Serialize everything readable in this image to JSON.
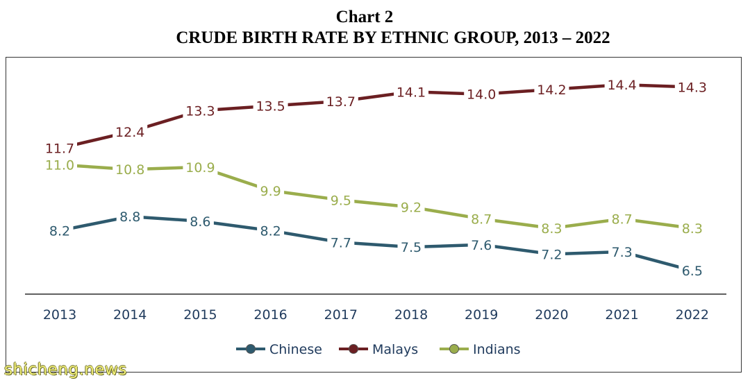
{
  "header": {
    "title": "Chart 2",
    "subtitle": "CRUDE BIRTH RATE BY ETHNIC GROUP, 2013 – 2022"
  },
  "watermark": "shicheng.news",
  "colors": {
    "Chinese": "#2e5a6e",
    "Malays": "#6b1f22",
    "Indians": "#9aad4c",
    "axis": "#000000",
    "tick_label": "#1f3a5c"
  },
  "chart_data": {
    "type": "line",
    "title": "CRUDE BIRTH RATE BY ETHNIC GROUP, 2013 – 2022",
    "xlabel": "",
    "ylabel": "",
    "categories": [
      "2013",
      "2014",
      "2015",
      "2016",
      "2017",
      "2018",
      "2019",
      "2020",
      "2021",
      "2022"
    ],
    "ylim": [
      5.5,
      15.2
    ],
    "grid": false,
    "legend_position": "bottom",
    "series": [
      {
        "name": "Chinese",
        "values": [
          8.2,
          8.8,
          8.6,
          8.2,
          7.7,
          7.5,
          7.6,
          7.2,
          7.3,
          6.5
        ],
        "labels": [
          "8.2",
          "8.8",
          "8.6",
          "8.2",
          "7.7",
          "7.5",
          "7.6",
          "7.2",
          "7.3",
          "6.5"
        ]
      },
      {
        "name": "Malays",
        "values": [
          11.7,
          12.4,
          13.3,
          13.5,
          13.7,
          14.1,
          14.0,
          14.2,
          14.4,
          14.3
        ],
        "labels": [
          "11.7",
          "12.4",
          "13.3",
          "13.5",
          "13.7",
          "14.1",
          "14.0",
          "14.2",
          "14.4",
          "14.3"
        ]
      },
      {
        "name": "Indians",
        "values": [
          11.0,
          10.8,
          10.9,
          9.9,
          9.5,
          9.2,
          8.7,
          8.3,
          8.7,
          8.3
        ],
        "labels": [
          "11.0",
          "10.8",
          "10.9",
          "9.9",
          "9.5",
          "9.2",
          "8.7",
          "8.3",
          "8.7",
          "8.3"
        ]
      }
    ]
  }
}
